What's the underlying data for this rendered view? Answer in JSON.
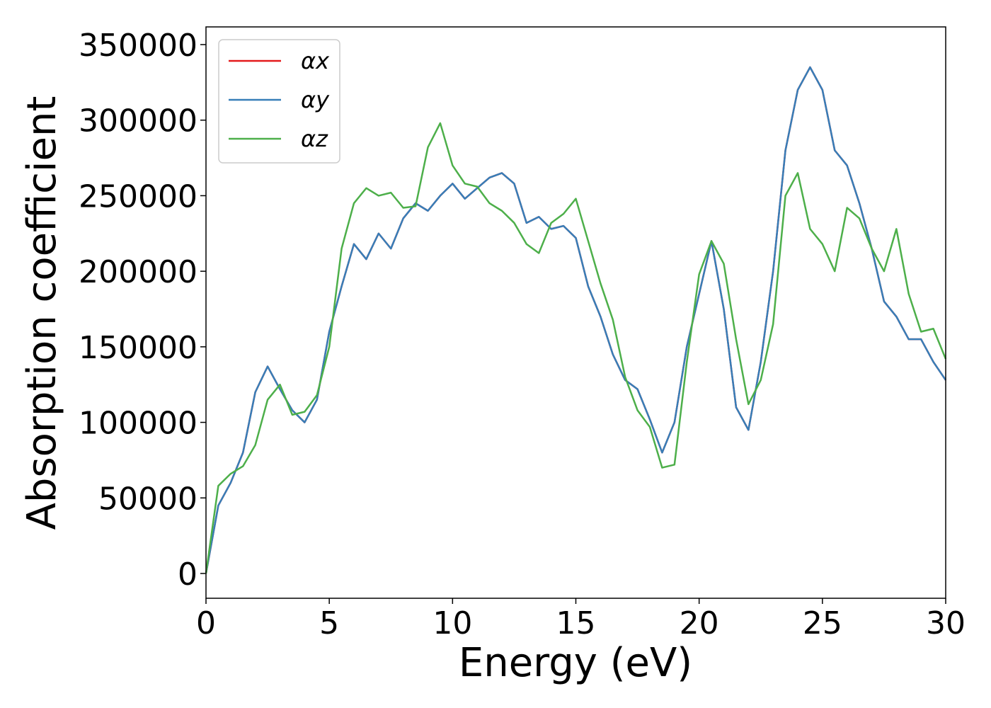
{
  "chart_data": {
    "type": "line",
    "xlabel": "Energy (eV)",
    "ylabel": "Absorption coefficient",
    "x": [
      0,
      0.5,
      1,
      1.5,
      2,
      2.5,
      3,
      3.5,
      4,
      4.5,
      5,
      5.5,
      6,
      6.5,
      7,
      7.5,
      8,
      8.5,
      9,
      9.5,
      10,
      10.5,
      11,
      11.5,
      12,
      12.5,
      13,
      13.5,
      14,
      14.5,
      15,
      15.5,
      16,
      16.5,
      17,
      17.5,
      18,
      18.5,
      19,
      19.5,
      20,
      20.5,
      21,
      21.5,
      22,
      22.5,
      23,
      23.5,
      24,
      24.5,
      25,
      25.5,
      26,
      26.5,
      27,
      27.5,
      28,
      28.5,
      29,
      29.5,
      30
    ],
    "series": [
      {
        "name": "αx",
        "color": "#e41a1c",
        "values": [
          0,
          45000,
          60000,
          80000,
          120000,
          137000,
          122000,
          108000,
          100000,
          115000,
          160000,
          190000,
          218000,
          208000,
          225000,
          215000,
          235000,
          245000,
          240000,
          250000,
          258000,
          248000,
          255000,
          262000,
          265000,
          258000,
          232000,
          236000,
          228000,
          230000,
          222000,
          190000,
          170000,
          145000,
          128000,
          122000,
          102000,
          80000,
          100000,
          150000,
          185000,
          220000,
          175000,
          110000,
          95000,
          140000,
          200000,
          280000,
          320000,
          335000,
          320000,
          280000,
          270000,
          245000,
          215000,
          180000,
          170000,
          155000,
          155000,
          140000,
          128000
        ]
      },
      {
        "name": "αy",
        "color": "#377eb8",
        "values": [
          0,
          45000,
          60000,
          80000,
          120000,
          137000,
          122000,
          108000,
          100000,
          115000,
          160000,
          190000,
          218000,
          208000,
          225000,
          215000,
          235000,
          245000,
          240000,
          250000,
          258000,
          248000,
          255000,
          262000,
          265000,
          258000,
          232000,
          236000,
          228000,
          230000,
          222000,
          190000,
          170000,
          145000,
          128000,
          122000,
          102000,
          80000,
          100000,
          150000,
          185000,
          220000,
          175000,
          110000,
          95000,
          140000,
          200000,
          280000,
          320000,
          335000,
          320000,
          280000,
          270000,
          245000,
          215000,
          180000,
          170000,
          155000,
          155000,
          140000,
          128000
        ]
      },
      {
        "name": "αz",
        "color": "#4daf4a",
        "values": [
          0,
          58000,
          66000,
          71000,
          85000,
          115000,
          125000,
          105000,
          107000,
          118000,
          150000,
          215000,
          245000,
          255000,
          250000,
          252000,
          242000,
          243000,
          282000,
          298000,
          270000,
          258000,
          256000,
          245000,
          240000,
          232000,
          218000,
          212000,
          232000,
          238000,
          248000,
          220000,
          192000,
          168000,
          130000,
          108000,
          97000,
          70000,
          72000,
          140000,
          198000,
          220000,
          205000,
          155000,
          112000,
          128000,
          165000,
          250000,
          265000,
          228000,
          218000,
          200000,
          242000,
          235000,
          215000,
          200000,
          228000,
          185000,
          160000,
          162000,
          142000
        ]
      }
    ],
    "xlim": [
      0,
      30
    ],
    "xticks": [
      0,
      5,
      10,
      15,
      20,
      25,
      30
    ],
    "ylim": [
      -16400,
      361700
    ],
    "yticks": [
      0,
      50000,
      100000,
      150000,
      200000,
      250000,
      300000,
      350000
    ],
    "legend": "upper left"
  }
}
